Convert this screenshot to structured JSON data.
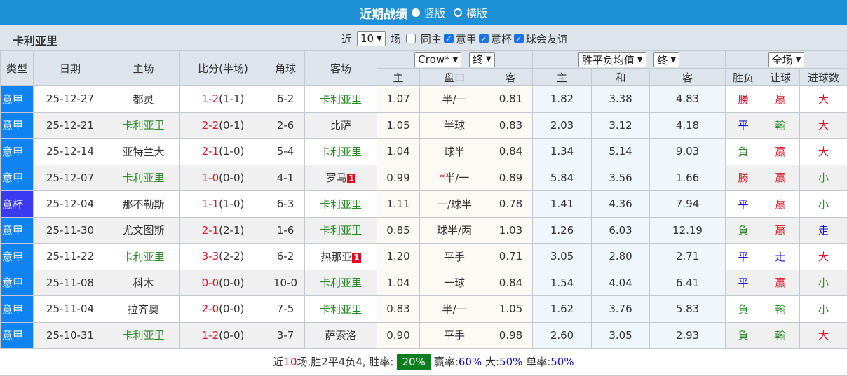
{
  "header": {
    "title": "近期战绩",
    "option_vertical": "竖版",
    "option_horizontal": "横版",
    "vertical_selected": true
  },
  "filter": {
    "team": "卡利亚里",
    "label_recent": "近",
    "count": "10",
    "label_games": "场",
    "same_home": "同主",
    "same_home_checked": false,
    "leagues": [
      {
        "label": "意甲",
        "checked": true
      },
      {
        "label": "意杯",
        "checked": true
      },
      {
        "label": "球会友谊",
        "checked": true
      }
    ]
  },
  "columns": {
    "type": "类型",
    "date": "日期",
    "home": "主场",
    "score": "比分(半场)",
    "corner": "角球",
    "away": "客场",
    "ah_company": "Crow*",
    "ah_phase": "终",
    "ah_home": "主",
    "ah_line": "盘口",
    "ah_away": "客",
    "eu_type": "胜平负均值",
    "eu_phase": "终",
    "eu_home": "主",
    "eu_draw": "和",
    "eu_away": "客",
    "scope": "全场",
    "result": "胜负",
    "handicap": "让球",
    "goals": "进球数"
  },
  "rows": [
    {
      "type": "意甲",
      "date": "25-12-27",
      "home": "都灵",
      "home_is_team": false,
      "ft": "1-2",
      "ht": "(1-1)",
      "corner": "6-2",
      "away": "卡利亚里",
      "away_is_team": true,
      "away_red": "",
      "ah_home": "1.07",
      "ah_star": "",
      "ah_line": "半/一",
      "ah_away": "0.81",
      "eu_home": "1.82",
      "eu_draw": "3.38",
      "eu_away": "4.83",
      "result": "勝",
      "handicap": "赢",
      "goals": "大"
    },
    {
      "type": "意甲",
      "date": "25-12-21",
      "home": "卡利亚里",
      "home_is_team": true,
      "ft": "2-2",
      "ht": "(0-1)",
      "corner": "2-6",
      "away": "比萨",
      "away_is_team": false,
      "away_red": "",
      "ah_home": "1.05",
      "ah_star": "",
      "ah_line": "半球",
      "ah_away": "0.83",
      "eu_home": "2.03",
      "eu_draw": "3.12",
      "eu_away": "4.18",
      "result": "平",
      "handicap": "輸",
      "goals": "大"
    },
    {
      "type": "意甲",
      "date": "25-12-14",
      "home": "亚特兰大",
      "home_is_team": false,
      "ft": "2-1",
      "ht": "(1-0)",
      "corner": "5-4",
      "away": "卡利亚里",
      "away_is_team": true,
      "away_red": "",
      "ah_home": "1.04",
      "ah_star": "",
      "ah_line": "球半",
      "ah_away": "0.84",
      "eu_home": "1.34",
      "eu_draw": "5.14",
      "eu_away": "9.03",
      "result": "負",
      "handicap": "赢",
      "goals": "大"
    },
    {
      "type": "意甲",
      "date": "25-12-07",
      "home": "卡利亚里",
      "home_is_team": true,
      "ft": "1-0",
      "ht": "(0-0)",
      "corner": "4-1",
      "away": "罗马",
      "away_is_team": false,
      "away_red": "1",
      "ah_home": "0.99",
      "ah_star": "*",
      "ah_line": "半/一",
      "ah_away": "0.89",
      "eu_home": "5.84",
      "eu_draw": "3.56",
      "eu_away": "1.66",
      "result": "勝",
      "handicap": "赢",
      "goals": "小"
    },
    {
      "type": "意杯",
      "date": "25-12-04",
      "home": "那不勒斯",
      "home_is_team": false,
      "ft": "1-1",
      "ht": "(1-0)",
      "corner": "6-3",
      "away": "卡利亚里",
      "away_is_team": true,
      "away_red": "",
      "ah_home": "1.11",
      "ah_star": "",
      "ah_line": "一/球半",
      "ah_away": "0.78",
      "eu_home": "1.41",
      "eu_draw": "4.36",
      "eu_away": "7.94",
      "result": "平",
      "handicap": "赢",
      "goals": "小"
    },
    {
      "type": "意甲",
      "date": "25-11-30",
      "home": "尤文图斯",
      "home_is_team": false,
      "ft": "2-1",
      "ht": "(2-1)",
      "corner": "1-6",
      "away": "卡利亚里",
      "away_is_team": true,
      "away_red": "",
      "ah_home": "0.85",
      "ah_star": "",
      "ah_line": "球半/两",
      "ah_away": "1.03",
      "eu_home": "1.26",
      "eu_draw": "6.03",
      "eu_away": "12.19",
      "result": "負",
      "handicap": "赢",
      "goals": "走"
    },
    {
      "type": "意甲",
      "date": "25-11-22",
      "home": "卡利亚里",
      "home_is_team": true,
      "ft": "3-3",
      "ht": "(2-2)",
      "corner": "6-2",
      "away": "热那亚",
      "away_is_team": false,
      "away_red": "1",
      "ah_home": "1.20",
      "ah_star": "",
      "ah_line": "平手",
      "ah_away": "0.71",
      "eu_home": "3.05",
      "eu_draw": "2.80",
      "eu_away": "2.71",
      "result": "平",
      "handicap": "走",
      "goals": "大"
    },
    {
      "type": "意甲",
      "date": "25-11-08",
      "home": "科木",
      "home_is_team": false,
      "ft": "0-0",
      "ht": "(0-0)",
      "corner": "10-0",
      "away": "卡利亚里",
      "away_is_team": true,
      "away_red": "",
      "ah_home": "1.04",
      "ah_star": "",
      "ah_line": "一球",
      "ah_away": "0.84",
      "eu_home": "1.54",
      "eu_draw": "4.04",
      "eu_away": "6.41",
      "result": "平",
      "handicap": "赢",
      "goals": "小"
    },
    {
      "type": "意甲",
      "date": "25-11-04",
      "home": "拉齐奥",
      "home_is_team": false,
      "ft": "2-0",
      "ht": "(0-0)",
      "corner": "7-5",
      "away": "卡利亚里",
      "away_is_team": true,
      "away_red": "",
      "ah_home": "0.83",
      "ah_star": "",
      "ah_line": "半/一",
      "ah_away": "1.05",
      "eu_home": "1.62",
      "eu_draw": "3.76",
      "eu_away": "5.83",
      "result": "負",
      "handicap": "輸",
      "goals": "小"
    },
    {
      "type": "意甲",
      "date": "25-10-31",
      "home": "卡利亚里",
      "home_is_team": true,
      "ft": "1-2",
      "ht": "(0-0)",
      "corner": "3-7",
      "away": "萨索洛",
      "away_is_team": false,
      "away_red": "",
      "ah_home": "0.90",
      "ah_star": "",
      "ah_line": "平手",
      "ah_away": "0.98",
      "eu_home": "2.60",
      "eu_draw": "3.05",
      "eu_away": "2.93",
      "result": "負",
      "handicap": "輸",
      "goals": "大"
    }
  ],
  "summary": {
    "p1": "近",
    "games": "10",
    "p2": "场,胜2平4负4, 胜率:",
    "win_rate": "20%",
    "p3": "赢率:",
    "cover_rate": "60%",
    "p4": " 大:",
    "over_rate": "50%",
    "p5": " 单率:",
    "odd_rate": "50%"
  },
  "colors": {
    "title_bar": "#1e90d6",
    "league_badge": "#0f84f0",
    "cup_badge": "#3a3af0",
    "win": "#e0142a",
    "draw": "#1414c8",
    "loss": "#2a8a2a",
    "win_rate_bg": "#0a7d1c"
  }
}
